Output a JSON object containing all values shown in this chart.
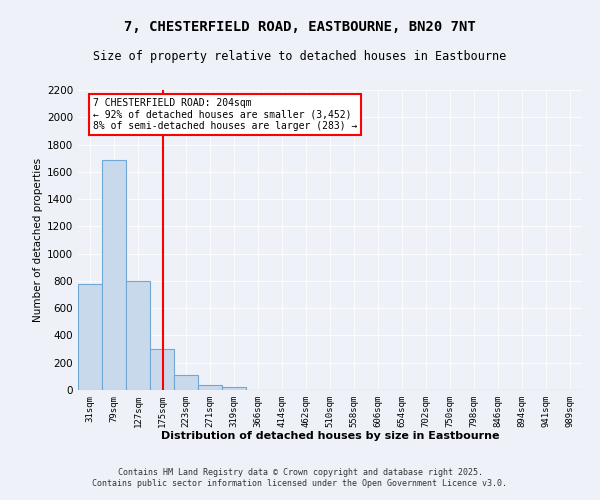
{
  "title": "7, CHESTERFIELD ROAD, EASTBOURNE, BN20 7NT",
  "subtitle": "Size of property relative to detached houses in Eastbourne",
  "xlabel": "Distribution of detached houses by size in Eastbourne",
  "ylabel": "Number of detached properties",
  "bar_labels": [
    "31sqm",
    "79sqm",
    "127sqm",
    "175sqm",
    "223sqm",
    "271sqm",
    "319sqm",
    "366sqm",
    "414sqm",
    "462sqm",
    "510sqm",
    "558sqm",
    "606sqm",
    "654sqm",
    "702sqm",
    "750sqm",
    "798sqm",
    "846sqm",
    "894sqm",
    "941sqm",
    "989sqm"
  ],
  "bar_values": [
    780,
    1690,
    800,
    300,
    110,
    40,
    20,
    0,
    0,
    0,
    0,
    0,
    0,
    0,
    0,
    0,
    0,
    0,
    0,
    0,
    0
  ],
  "bar_color": "#c8d9ec",
  "bar_edge_color": "#6fa8d4",
  "property_line_x": 3.55,
  "property_sqm": 204,
  "pct_smaller": 92,
  "count_smaller": 3452,
  "pct_larger": 8,
  "count_larger": 283,
  "ylim": [
    0,
    2200
  ],
  "yticks": [
    0,
    200,
    400,
    600,
    800,
    1000,
    1200,
    1400,
    1600,
    1800,
    2000,
    2200
  ],
  "background_color": "#eef2f8",
  "grid_color": "#ffffff",
  "footer_line1": "Contains HM Land Registry data © Crown copyright and database right 2025.",
  "footer_line2": "Contains public sector information licensed under the Open Government Licence v3.0."
}
